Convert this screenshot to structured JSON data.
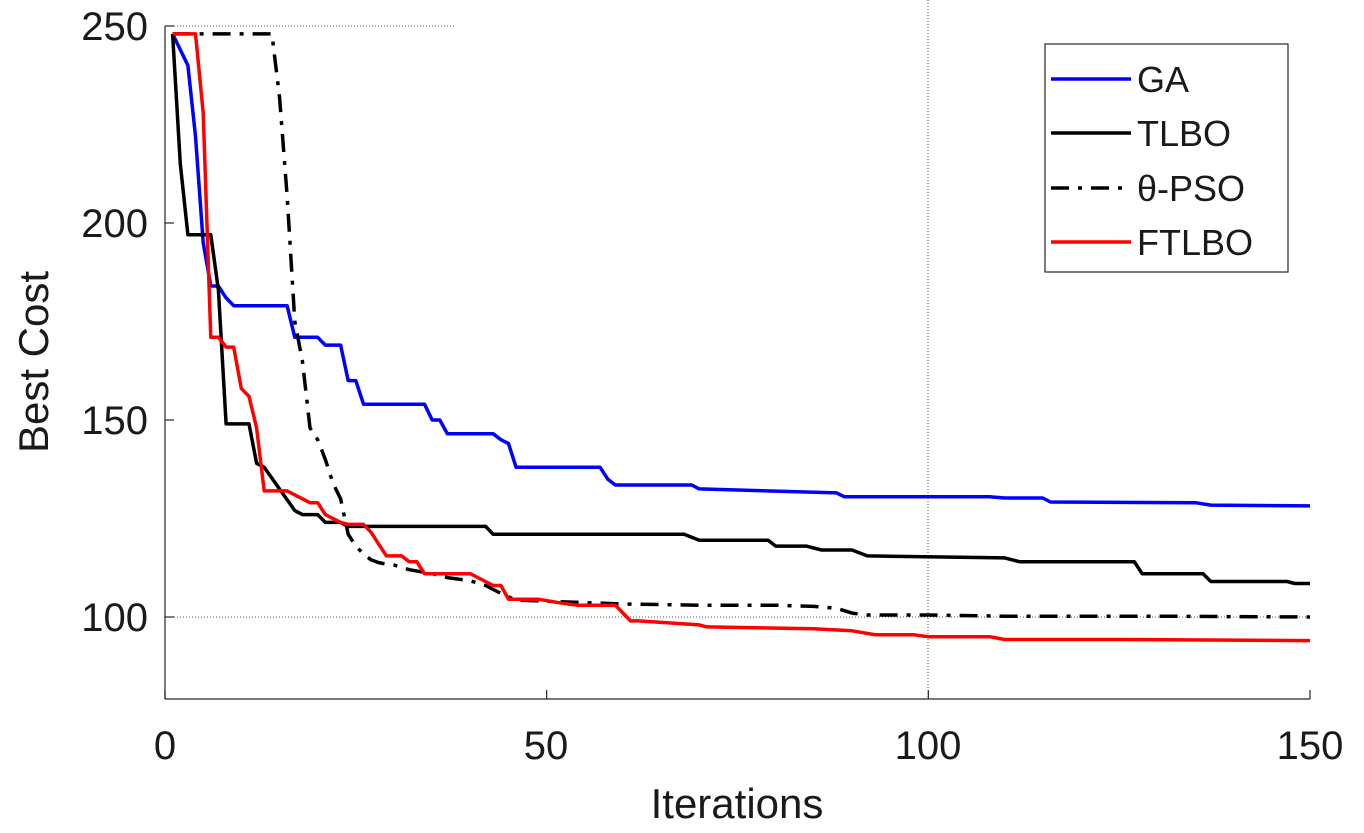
{
  "chart_data": {
    "type": "line",
    "title": "",
    "xlabel": "Iterations",
    "ylabel": "Best Cost",
    "xlim": [
      0,
      150
    ],
    "ylim": [
      80,
      250
    ],
    "xticks": [
      0,
      50,
      100,
      150
    ],
    "yticks": [
      100,
      150,
      200,
      250
    ],
    "x_tick_labels": [
      "0",
      "50",
      "100",
      "150"
    ],
    "y_tick_labels": [
      "100",
      "150",
      "200",
      "250"
    ],
    "grid": "partial dotted lines at x=100 and y=100",
    "legend_position": "top-right",
    "series": [
      {
        "name": "GA",
        "color": "#0000ff",
        "dash": "solid",
        "x": [
          1,
          3,
          4,
          5,
          6,
          7,
          8,
          9,
          16,
          17,
          20,
          21,
          23,
          24,
          25,
          26,
          27,
          34,
          35,
          36,
          37,
          43,
          44,
          45,
          46,
          47,
          57,
          58,
          59,
          60,
          69,
          70,
          88,
          89,
          108,
          110,
          115,
          116,
          135,
          137,
          150
        ],
        "y": [
          248,
          240,
          222,
          195,
          184,
          184,
          181,
          179,
          179,
          171,
          171,
          169,
          169,
          160,
          160,
          154,
          154,
          154,
          150,
          150,
          146.5,
          146.5,
          145,
          144,
          138,
          138,
          138,
          135,
          133.5,
          133.5,
          133.5,
          132.5,
          131.5,
          130.5,
          130.5,
          130.2,
          130.2,
          129.2,
          129,
          128.4,
          128.2
        ]
      },
      {
        "name": "TLBO",
        "color": "#000000",
        "dash": "solid",
        "x": [
          1,
          2,
          3,
          6,
          7,
          8,
          9,
          11,
          12,
          13,
          17,
          18,
          20,
          21,
          23,
          24,
          42,
          43,
          68,
          70,
          79,
          80,
          84,
          86,
          90,
          92,
          110,
          112,
          127,
          128,
          136,
          137,
          147,
          148,
          150
        ],
        "y": [
          248,
          215,
          197,
          197,
          183,
          149,
          149,
          149,
          139,
          138,
          127,
          126,
          126,
          124,
          124,
          123,
          123,
          121,
          121,
          119.5,
          119.5,
          118,
          118,
          117,
          117,
          115.5,
          115,
          114,
          114,
          111,
          111,
          109,
          109,
          108.5,
          108.5
        ]
      },
      {
        "name": "θ-PSO",
        "color": "#000000",
        "dash": "dashdot",
        "x": [
          1,
          14,
          15,
          16,
          17,
          18,
          19,
          20,
          21,
          22,
          23,
          24,
          25,
          26,
          27,
          28,
          29,
          30,
          31,
          32,
          35,
          37,
          40,
          42,
          44,
          46,
          50,
          60,
          70,
          80,
          85,
          88,
          90,
          92,
          100,
          110,
          130,
          150
        ],
        "y": [
          248,
          248,
          232,
          207,
          175,
          165,
          148,
          145,
          140,
          134,
          130,
          121,
          118,
          116,
          114.5,
          113.8,
          113.4,
          113.2,
          112.6,
          112,
          111,
          110,
          109.2,
          108,
          106,
          104.3,
          104,
          103.3,
          103,
          103,
          102.7,
          102.2,
          101,
          100.5,
          100.5,
          100.2,
          100.2,
          100
        ]
      },
      {
        "name": "FTLBO",
        "color": "#ff0000",
        "dash": "solid",
        "x": [
          1,
          4,
          5,
          6,
          7,
          8,
          9,
          10,
          11,
          12,
          13,
          16,
          17,
          19,
          20,
          21,
          23,
          24,
          26,
          27,
          28,
          29,
          31,
          32,
          33,
          34,
          36,
          40,
          43,
          44,
          45,
          46,
          49,
          52,
          54,
          59,
          60,
          61,
          62,
          70,
          71,
          85,
          90,
          93,
          98,
          100,
          108,
          110,
          125,
          150
        ],
        "y": [
          248,
          248,
          228,
          171,
          171,
          168.5,
          168.5,
          158,
          156,
          148,
          132,
          132,
          131,
          129,
          129,
          126,
          124,
          123.5,
          123.5,
          121.5,
          118.5,
          115.5,
          115.5,
          114,
          114,
          111,
          111,
          111,
          108,
          108,
          104.5,
          104.5,
          104.5,
          103.5,
          103,
          103,
          101,
          99,
          99,
          98,
          97.5,
          97,
          96.5,
          95.5,
          95.5,
          95,
          95,
          94.3,
          94.3,
          94
        ]
      }
    ]
  }
}
